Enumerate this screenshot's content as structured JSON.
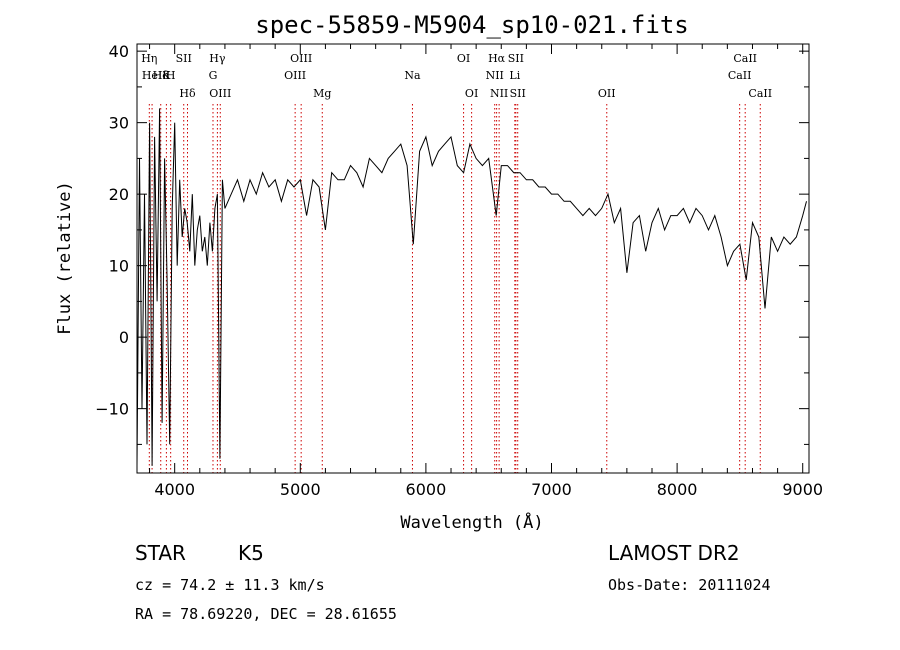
{
  "chart_data": {
    "type": "line",
    "title": "spec-55859-M5904_sp10-021.fits",
    "xlabel": "Wavelength (Å)",
    "ylabel": "Flux (relative)",
    "xlim": [
      3700,
      9050
    ],
    "ylim": [
      -19,
      41
    ],
    "xticks": [
      4000,
      5000,
      6000,
      7000,
      8000,
      9000
    ],
    "yticks": [
      -10,
      0,
      10,
      20,
      30,
      40
    ],
    "grid": false,
    "line_color": "#000000",
    "marker_color": "#cc0000",
    "series": [
      {
        "x": [
          3700,
          3720,
          3740,
          3760,
          3780,
          3800,
          3820,
          3840,
          3860,
          3880,
          3900,
          3920,
          3940,
          3960,
          3980,
          4000,
          4020,
          4040,
          4060,
          4080,
          4100,
          4120,
          4140,
          4160,
          4180,
          4200,
          4220,
          4240,
          4260,
          4280,
          4300,
          4320,
          4340,
          4360,
          4380,
          4400,
          4450,
          4500,
          4550,
          4600,
          4650,
          4700,
          4750,
          4800,
          4850,
          4900,
          4950,
          5000,
          5050,
          5100,
          5150,
          5200,
          5250,
          5300,
          5350,
          5400,
          5450,
          5500,
          5550,
          5600,
          5650,
          5700,
          5750,
          5800,
          5850,
          5900,
          5950,
          6000,
          6050,
          6100,
          6150,
          6200,
          6250,
          6300,
          6350,
          6400,
          6450,
          6500,
          6560,
          6600,
          6650,
          6700,
          6750,
          6800,
          6850,
          6900,
          6950,
          7000,
          7050,
          7100,
          7150,
          7200,
          7250,
          7300,
          7350,
          7400,
          7450,
          7500,
          7550,
          7600,
          7650,
          7700,
          7750,
          7800,
          7850,
          7900,
          7950,
          8000,
          8050,
          8100,
          8150,
          8200,
          8250,
          8300,
          8350,
          8400,
          8450,
          8500,
          8550,
          8600,
          8650,
          8700,
          8750,
          8800,
          8850,
          8900,
          8950,
          9000,
          9030
        ],
        "y": [
          -18,
          25,
          -10,
          20,
          -15,
          30,
          -18,
          28,
          5,
          32,
          -12,
          25,
          8,
          -15,
          18,
          30,
          10,
          22,
          14,
          18,
          16,
          12,
          20,
          10,
          15,
          17,
          12,
          14,
          10,
          16,
          12,
          18,
          20,
          -17,
          22,
          18,
          20,
          22,
          19,
          22,
          20,
          23,
          21,
          22,
          19,
          22,
          21,
          22,
          17,
          22,
          21,
          15,
          23,
          22,
          22,
          24,
          23,
          21,
          25,
          24,
          23,
          25,
          26,
          27,
          24,
          13,
          26,
          28,
          24,
          26,
          27,
          28,
          24,
          23,
          27,
          25,
          24,
          25,
          17,
          24,
          24,
          23,
          23,
          22,
          22,
          21,
          21,
          20,
          20,
          19,
          19,
          18,
          17,
          18,
          17,
          18,
          20,
          16,
          18,
          9,
          16,
          17,
          12,
          16,
          18,
          15,
          17,
          17,
          18,
          16,
          18,
          17,
          15,
          17,
          14,
          10,
          12,
          13,
          8,
          16,
          14,
          4,
          14,
          12,
          14,
          13,
          14,
          17,
          19
        ]
      }
    ],
    "lines": [
      {
        "x": 3798,
        "row": 1,
        "label": "Hη"
      },
      {
        "x": 3820,
        "row": 2,
        "label": "HeI"
      },
      {
        "x": 3889,
        "row": 2,
        "label": "Hδ"
      },
      {
        "x": 3934,
        "row": 2,
        "label": "K"
      },
      {
        "x": 3968,
        "row": 2,
        "label": "H"
      },
      {
        "x": 4072,
        "row": 1,
        "label": "SII"
      },
      {
        "x": 4102,
        "row": 3,
        "label": "Hδ"
      },
      {
        "x": 4305,
        "row": 2,
        "label": "G"
      },
      {
        "x": 4340,
        "row": 1,
        "label": "Hγ"
      },
      {
        "x": 4363,
        "row": 3,
        "label": "OIII"
      },
      {
        "x": 4959,
        "row": 2,
        "label": "OIII"
      },
      {
        "x": 5007,
        "row": 1,
        "label": "OIII"
      },
      {
        "x": 5175,
        "row": 3,
        "label": "Mg"
      },
      {
        "x": 5893,
        "row": 2,
        "label": "Na"
      },
      {
        "x": 6300,
        "row": 1,
        "label": "OI"
      },
      {
        "x": 6364,
        "row": 3,
        "label": "OI"
      },
      {
        "x": 6548,
        "row": 2,
        "label": "NII"
      },
      {
        "x": 6563,
        "row": 1,
        "label": "Hα"
      },
      {
        "x": 6583,
        "row": 3,
        "label": "NII"
      },
      {
        "x": 6708,
        "row": 2,
        "label": "Li"
      },
      {
        "x": 6716,
        "row": 1,
        "label": "SII"
      },
      {
        "x": 6731,
        "row": 3,
        "label": "SII"
      },
      {
        "x": 7440,
        "row": 3,
        "label": "OII"
      },
      {
        "x": 8498,
        "row": 2,
        "label": "CaII"
      },
      {
        "x": 8542,
        "row": 1,
        "label": "CaII"
      },
      {
        "x": 8662,
        "row": 3,
        "label": "CaII"
      }
    ]
  },
  "info": {
    "class": "STAR",
    "subclass": "K5",
    "survey": "LAMOST DR2",
    "cz": "cz = 74.2 ± 11.3 km/s",
    "obs_date": "Obs-Date: 20111024",
    "coords": "RA =  78.69220, DEC =  28.61655"
  }
}
